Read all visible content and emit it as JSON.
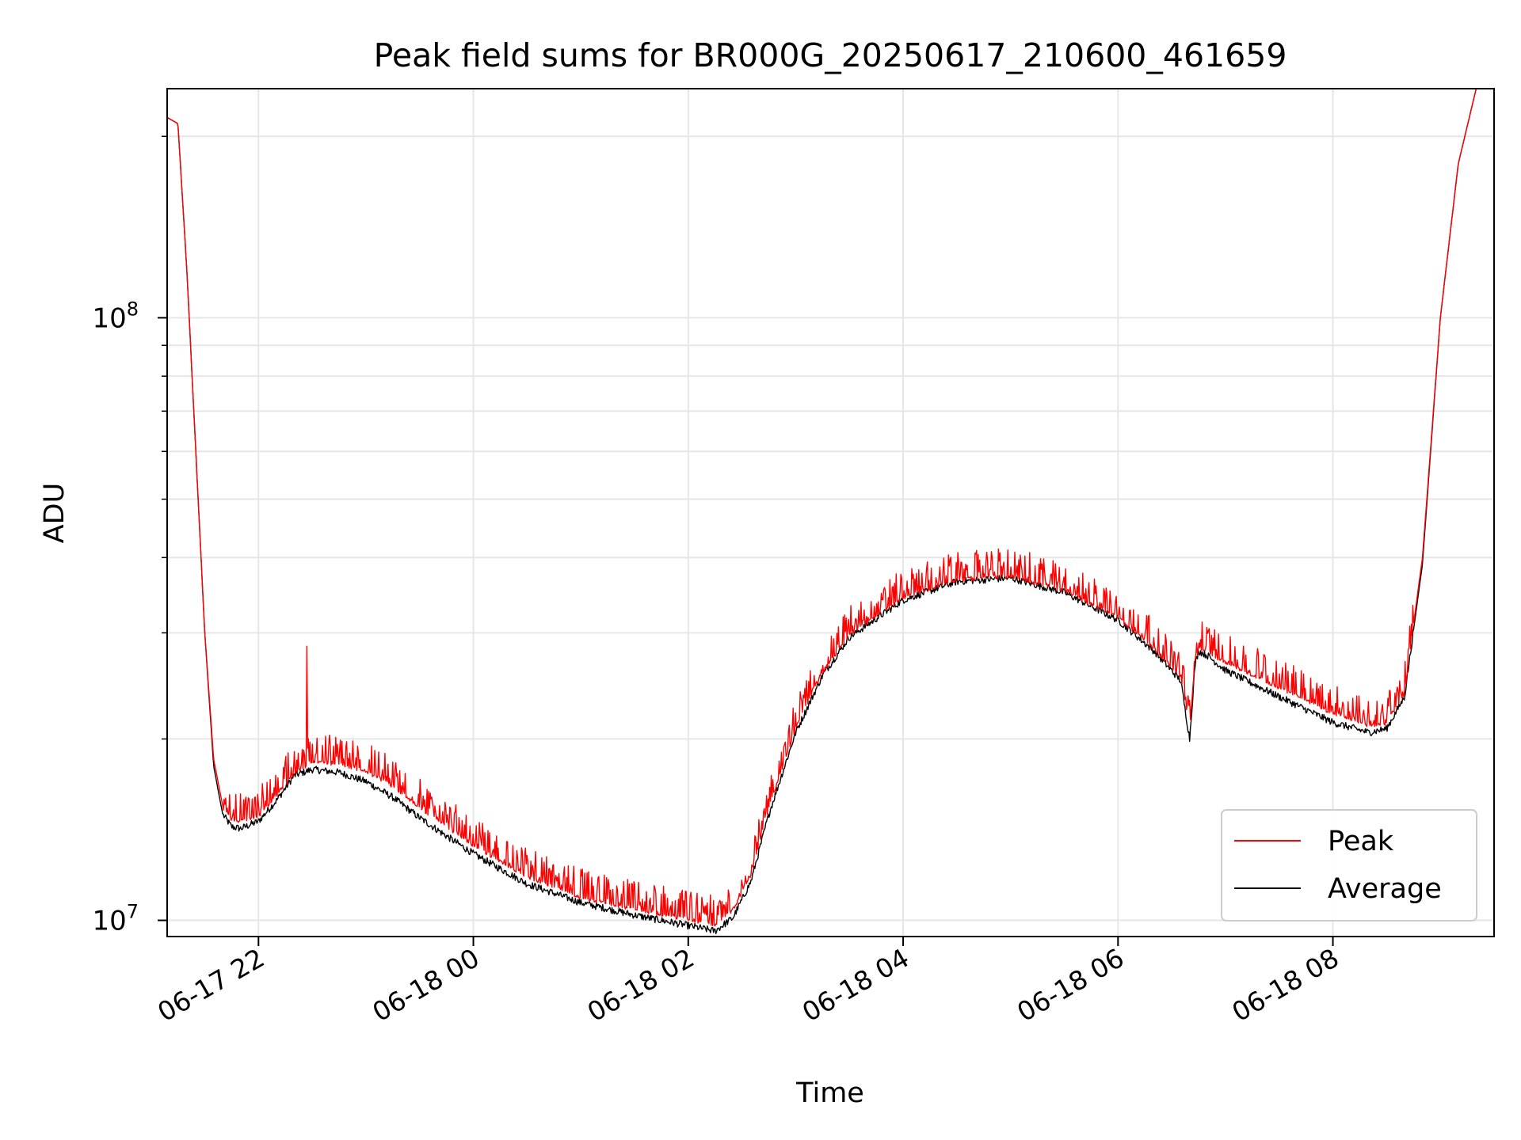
{
  "chart_data": {
    "type": "line",
    "title": "Peak field sums for BR000G_20250617_210600_461659",
    "xlabel": "Time",
    "ylabel": "ADU",
    "yscale": "log",
    "ylim": [
      9400000,
      240000000
    ],
    "xlim": [
      "2025-06-17 21:09",
      "2025-06-18 09:30"
    ],
    "grid": true,
    "legend_position": "lower-right",
    "x_ticks": [
      {
        "value": "2025-06-17 22:00",
        "label": "06-17 22"
      },
      {
        "value": "2025-06-18 00:00",
        "label": "06-18 00"
      },
      {
        "value": "2025-06-18 02:00",
        "label": "06-18 02"
      },
      {
        "value": "2025-06-18 04:00",
        "label": "06-18 04"
      },
      {
        "value": "2025-06-18 06:00",
        "label": "06-18 06"
      },
      {
        "value": "2025-06-18 08:00",
        "label": "06-18 08"
      }
    ],
    "y_ticks": [
      {
        "value": 10000000,
        "base": "10",
        "exp": "7"
      },
      {
        "value": 100000000,
        "base": "10",
        "exp": "8"
      }
    ],
    "y_minor_ticks": [
      20000000,
      30000000,
      40000000,
      50000000,
      60000000,
      70000000,
      80000000,
      90000000,
      200000000
    ],
    "series": [
      {
        "name": "Peak",
        "color": "#ff0000",
        "noise": "spiky",
        "x": [
          "2025-06-17 21:09",
          "2025-06-17 21:15",
          "2025-06-17 21:20",
          "2025-06-17 21:25",
          "2025-06-17 21:30",
          "2025-06-17 21:35",
          "2025-06-17 21:40",
          "2025-06-17 21:45",
          "2025-06-17 21:50",
          "2025-06-17 22:00",
          "2025-06-17 22:10",
          "2025-06-17 22:20",
          "2025-06-17 22:27",
          "2025-06-17 22:30",
          "2025-06-17 22:45",
          "2025-06-17 23:00",
          "2025-06-17 23:15",
          "2025-06-17 23:30",
          "2025-06-17 23:45",
          "2025-06-18 00:00",
          "2025-06-18 00:30",
          "2025-06-18 01:00",
          "2025-06-18 01:30",
          "2025-06-18 02:00",
          "2025-06-18 02:15",
          "2025-06-18 02:25",
          "2025-06-18 02:35",
          "2025-06-18 02:45",
          "2025-06-18 03:00",
          "2025-06-18 03:15",
          "2025-06-18 03:30",
          "2025-06-18 04:00",
          "2025-06-18 04:30",
          "2025-06-18 05:00",
          "2025-06-18 05:30",
          "2025-06-18 06:00",
          "2025-06-18 06:20",
          "2025-06-18 06:35",
          "2025-06-18 06:40",
          "2025-06-18 06:43",
          "2025-06-18 06:45",
          "2025-06-18 06:50",
          "2025-06-18 07:00",
          "2025-06-18 07:30",
          "2025-06-18 08:00",
          "2025-06-18 08:20",
          "2025-06-18 08:30",
          "2025-06-18 08:40",
          "2025-06-18 08:50",
          "2025-06-18 09:00",
          "2025-06-18 09:10",
          "2025-06-18 09:20",
          "2025-06-18 09:30"
        ],
        "y": [
          215000000,
          210000000,
          120000000,
          60000000,
          30000000,
          18500000,
          15500000,
          14800000,
          14700000,
          15000000,
          16200000,
          17700000,
          18200000,
          18400000,
          18300000,
          17800000,
          16800000,
          15500000,
          14400000,
          13400000,
          11900000,
          11000000,
          10500000,
          10100000,
          9900000,
          10500000,
          12000000,
          15500000,
          21000000,
          26000000,
          30000000,
          34500000,
          37000000,
          37500000,
          35500000,
          32000000,
          28500000,
          25500000,
          21000000,
          27000000,
          28500000,
          28000000,
          27000000,
          24500000,
          22200000,
          21200000,
          21400000,
          24000000,
          40000000,
          100000000,
          180000000,
          240000000,
          240000000
        ]
      },
      {
        "name": "Average",
        "color": "#000000",
        "noise": "jitter",
        "x": [
          "2025-06-17 21:09",
          "2025-06-17 21:15",
          "2025-06-17 21:20",
          "2025-06-17 21:25",
          "2025-06-17 21:30",
          "2025-06-17 21:35",
          "2025-06-17 21:40",
          "2025-06-17 21:45",
          "2025-06-17 21:50",
          "2025-06-17 22:00",
          "2025-06-17 22:10",
          "2025-06-17 22:20",
          "2025-06-17 22:30",
          "2025-06-17 22:45",
          "2025-06-17 23:00",
          "2025-06-17 23:15",
          "2025-06-17 23:30",
          "2025-06-17 23:45",
          "2025-06-18 00:00",
          "2025-06-18 00:30",
          "2025-06-18 01:00",
          "2025-06-18 01:30",
          "2025-06-18 02:00",
          "2025-06-18 02:15",
          "2025-06-18 02:25",
          "2025-06-18 02:35",
          "2025-06-18 02:45",
          "2025-06-18 03:00",
          "2025-06-18 03:15",
          "2025-06-18 03:30",
          "2025-06-18 04:00",
          "2025-06-18 04:30",
          "2025-06-18 05:00",
          "2025-06-18 05:30",
          "2025-06-18 06:00",
          "2025-06-18 06:20",
          "2025-06-18 06:35",
          "2025-06-18 06:40",
          "2025-06-18 06:43",
          "2025-06-18 06:45",
          "2025-06-18 06:50",
          "2025-06-18 07:00",
          "2025-06-18 07:30",
          "2025-06-18 08:00",
          "2025-06-18 08:20",
          "2025-06-18 08:30",
          "2025-06-18 08:40",
          "2025-06-18 08:50",
          "2025-06-18 09:00",
          "2025-06-18 09:10",
          "2025-06-18 09:20",
          "2025-06-18 09:30"
        ],
        "y": [
          215000000,
          210000000,
          120000000,
          60000000,
          30000000,
          18000000,
          15000000,
          14300000,
          14200000,
          14600000,
          15800000,
          17400000,
          17800000,
          17600000,
          17000000,
          16000000,
          14800000,
          13800000,
          12900000,
          11500000,
          10700000,
          10200000,
          9800000,
          9600000,
          10100000,
          11600000,
          15000000,
          20500000,
          25500000,
          29500000,
          34000000,
          36500000,
          37000000,
          35000000,
          31500000,
          28000000,
          25000000,
          20000000,
          26500000,
          28000000,
          27500000,
          26000000,
          23500000,
          21300000,
          20500000,
          20800000,
          23500000,
          39000000,
          100000000,
          180000000,
          240000000,
          240000000
        ]
      }
    ]
  }
}
